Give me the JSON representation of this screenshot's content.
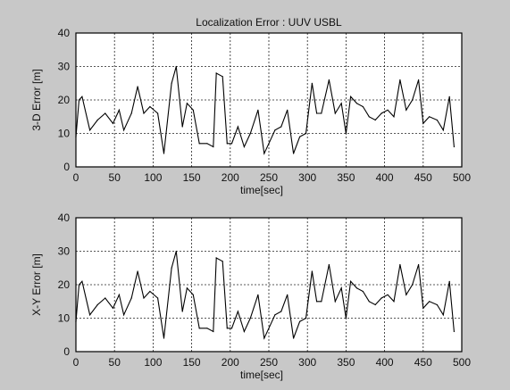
{
  "chart_data": [
    {
      "type": "line",
      "title": "Localization Error : UUV USBL",
      "xlabel": "time[sec]",
      "ylabel": "3-D Error [m]",
      "xlim": [
        0,
        500
      ],
      "ylim": [
        0,
        40
      ],
      "xticks": [
        "0",
        "50",
        "100",
        "150",
        "200",
        "250",
        "300",
        "350",
        "400",
        "450",
        "500"
      ],
      "yticks": [
        "0",
        "10",
        "20",
        "30",
        "40"
      ],
      "grid": true,
      "series": [
        {
          "x": [
            0,
            4,
            8,
            18,
            28,
            38,
            48,
            56,
            62,
            72,
            80,
            88,
            96,
            106,
            114,
            124,
            130,
            138,
            144,
            152,
            160,
            170,
            178,
            182,
            190,
            196,
            202,
            210,
            218,
            226,
            236,
            244,
            250,
            258,
            266,
            274,
            282,
            290,
            298,
            306,
            312,
            318,
            328,
            336,
            344,
            350,
            356,
            364,
            372,
            380,
            388,
            396,
            404,
            412,
            420,
            428,
            436,
            444,
            450,
            458,
            468,
            476,
            484,
            490
          ],
          "y": [
            9,
            20,
            21,
            11,
            14,
            16,
            13,
            17,
            11,
            16,
            24,
            16,
            18,
            16,
            4,
            25,
            30,
            12,
            19,
            17,
            7,
            7,
            6,
            28,
            27,
            7,
            7,
            12,
            6,
            10,
            17,
            4,
            7,
            11,
            12,
            17,
            4,
            9,
            10,
            25,
            16,
            16,
            26,
            16,
            19,
            10,
            21,
            19,
            18,
            15,
            14,
            16,
            17,
            15,
            26,
            17,
            20,
            26,
            13,
            15,
            14,
            11,
            21,
            6
          ]
        }
      ]
    },
    {
      "type": "line",
      "title": "",
      "xlabel": "time[sec]",
      "ylabel": "X-Y Error [m]",
      "xlim": [
        0,
        500
      ],
      "ylim": [
        0,
        40
      ],
      "xticks": [
        "0",
        "50",
        "100",
        "150",
        "200",
        "250",
        "300",
        "350",
        "400",
        "450",
        "500"
      ],
      "yticks": [
        "0",
        "10",
        "20",
        "30",
        "40"
      ],
      "grid": true,
      "series": [
        {
          "x": [
            0,
            4,
            8,
            18,
            28,
            38,
            48,
            56,
            62,
            72,
            80,
            88,
            96,
            106,
            114,
            124,
            130,
            138,
            144,
            152,
            160,
            170,
            178,
            182,
            190,
            196,
            202,
            210,
            218,
            226,
            236,
            244,
            250,
            258,
            266,
            274,
            282,
            290,
            298,
            306,
            312,
            318,
            328,
            336,
            344,
            350,
            356,
            364,
            372,
            380,
            388,
            396,
            404,
            412,
            420,
            428,
            436,
            444,
            450,
            458,
            468,
            476,
            484,
            490
          ],
          "y": [
            9,
            20,
            21,
            11,
            14,
            16,
            13,
            17,
            11,
            16,
            24,
            16,
            18,
            16,
            4,
            25,
            30,
            12,
            19,
            17,
            7,
            7,
            6,
            28,
            27,
            7,
            7,
            12,
            6,
            10,
            17,
            4,
            7,
            11,
            12,
            17,
            4,
            9,
            10,
            24,
            15,
            15,
            26,
            15,
            19,
            10,
            21,
            19,
            18,
            15,
            14,
            16,
            17,
            15,
            26,
            17,
            20,
            26,
            13,
            15,
            14,
            11,
            21,
            6
          ]
        }
      ]
    }
  ]
}
